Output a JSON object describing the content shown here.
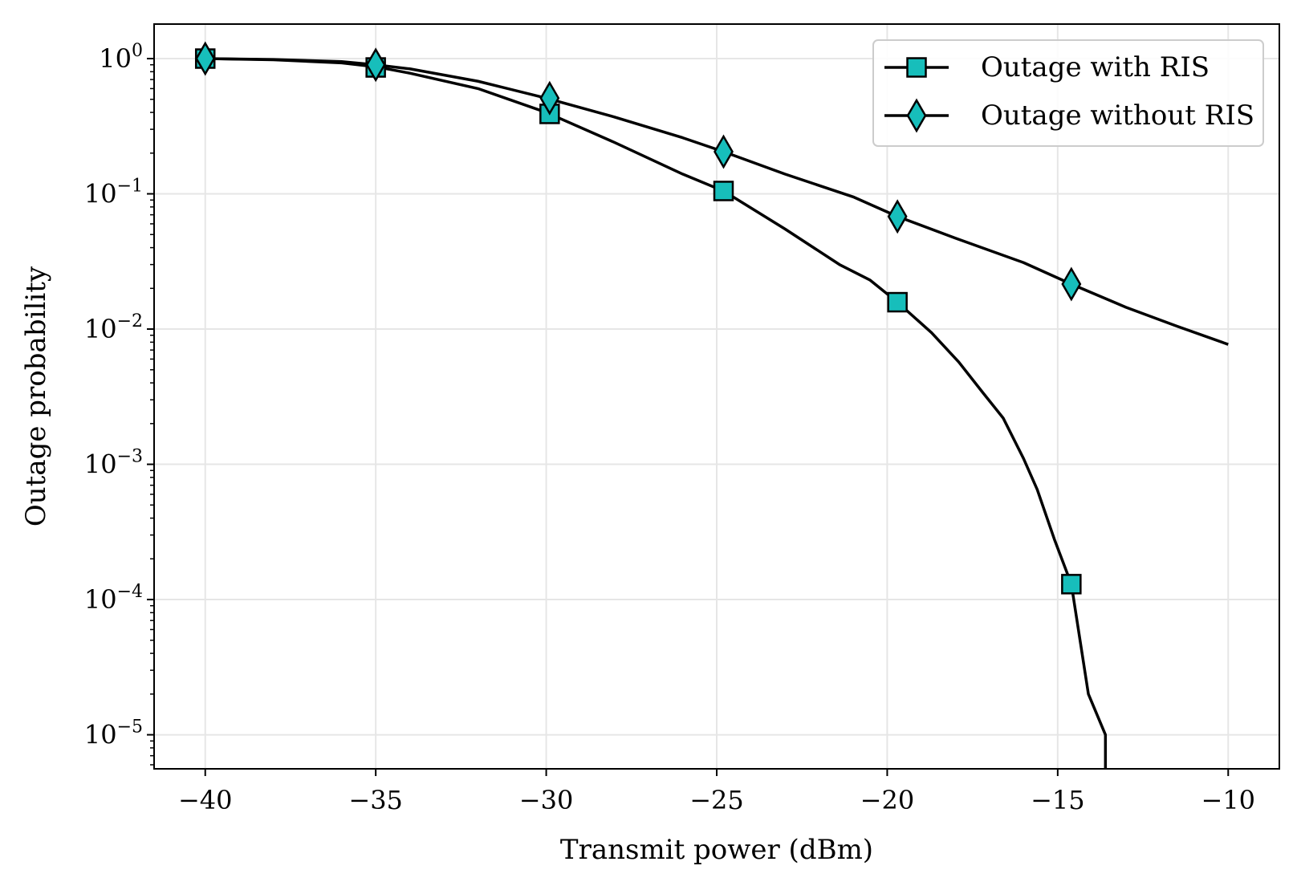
{
  "chart_data": {
    "type": "line",
    "title": "",
    "xlabel": "Transmit power (dBm)",
    "ylabel": "Outage probability",
    "xlim": [
      -41.5,
      -8.5
    ],
    "ylim": [
      5.6e-06,
      1.8
    ],
    "yscale": "log",
    "grid": true,
    "legend_position": "top-right",
    "xticks": [
      -40,
      -35,
      -30,
      -25,
      -20,
      -15,
      -10
    ],
    "xtick_labels": [
      "−40",
      "−35",
      "−30",
      "−25",
      "−20",
      "−15",
      "−10"
    ],
    "yticks": [
      {
        "value": 1,
        "mantissa": "10",
        "exponent": "0"
      },
      {
        "value": 0.1,
        "mantissa": "10",
        "exponent": "−1"
      },
      {
        "value": 0.01,
        "mantissa": "10",
        "exponent": "−2"
      },
      {
        "value": 0.001,
        "mantissa": "10",
        "exponent": "−3"
      },
      {
        "value": 0.0001,
        "mantissa": "10",
        "exponent": "−4"
      },
      {
        "value": 1e-05,
        "mantissa": "10",
        "exponent": "−5"
      }
    ],
    "series": [
      {
        "name": "Outage with RIS",
        "marker": "square",
        "marker_color": "#17bebb",
        "line_color": "#000000",
        "curve_x": [
          -40,
          -38,
          -36,
          -35,
          -34,
          -32,
          -30,
          -28,
          -26,
          -24.8,
          -23,
          -21.4,
          -20.5,
          -19.7,
          -18.7,
          -17.9,
          -17.2,
          -16.6,
          -16,
          -15.6,
          -15.1,
          -14.6,
          -14.1,
          -13.6,
          -13.6
        ],
        "curve_y": [
          1,
          0.98,
          0.93,
          0.87,
          0.78,
          0.6,
          0.4,
          0.24,
          0.14,
          0.105,
          0.055,
          0.03,
          0.023,
          0.0158,
          0.0094,
          0.0057,
          0.0034,
          0.0022,
          0.0011,
          0.00065,
          0.00028,
          0.00013,
          2e-05,
          1e-05,
          5.5e-06
        ],
        "marker_x": [
          -40,
          -35,
          -29.9,
          -24.8,
          -19.7,
          -14.6
        ],
        "marker_y": [
          1,
          0.86,
          0.39,
          0.105,
          0.0158,
          0.00013
        ]
      },
      {
        "name": "Outage without RIS",
        "marker": "diamond",
        "marker_color": "#17bebb",
        "line_color": "#000000",
        "curve_x": [
          -40,
          -38,
          -36,
          -35,
          -34,
          -32,
          -30,
          -28,
          -26,
          -24.8,
          -23,
          -21,
          -19.7,
          -18,
          -16,
          -14.6,
          -13,
          -11.5,
          -10
        ],
        "curve_y": [
          1,
          0.985,
          0.95,
          0.9,
          0.84,
          0.68,
          0.51,
          0.37,
          0.26,
          0.205,
          0.14,
          0.095,
          0.068,
          0.047,
          0.031,
          0.0215,
          0.0145,
          0.0105,
          0.0077
        ],
        "marker_x": [
          -40,
          -35,
          -29.9,
          -24.8,
          -19.7,
          -14.6
        ],
        "marker_y": [
          1,
          0.9,
          0.51,
          0.205,
          0.068,
          0.0215
        ]
      }
    ]
  }
}
